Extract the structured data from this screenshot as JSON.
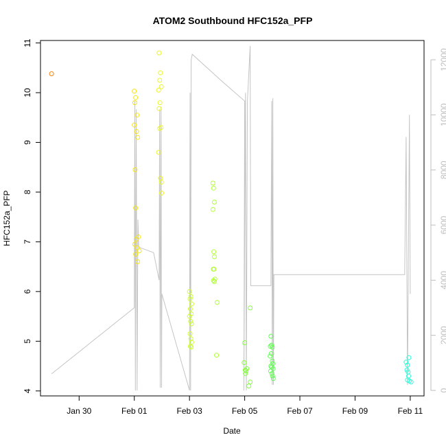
{
  "chart_data": {
    "type": "scatter",
    "title": "ATOM2 Southbound HFC152a_PFP",
    "xlabel": "Date",
    "ylabel": "HFC152a_PFP",
    "x_ticks": [
      "Jan 30",
      "Feb 01",
      "Feb 03",
      "Feb 05",
      "Feb 07",
      "Feb 09",
      "Feb 11"
    ],
    "x_tick_days": [
      30,
      32,
      34,
      36,
      38,
      40,
      42
    ],
    "xlim_days": [
      28.6,
      42.5
    ],
    "y_ticks": [
      4,
      5,
      6,
      7,
      8,
      9,
      10,
      11
    ],
    "ylim": [
      3.9,
      11.05
    ],
    "y2_ticks": [
      0,
      2000,
      4000,
      6000,
      8000,
      10000,
      12000
    ],
    "y2lim": [
      -200,
      12700
    ],
    "colors": {
      "axis": "#000000",
      "secondary_axis": "#bdbdbd",
      "altitude_line": "#c4c4c4",
      "gradient": [
        "#ff7f00",
        "#ffd200",
        "#e6ff33",
        "#99ff33",
        "#44ff66",
        "#22ffaa",
        "#22ffdd"
      ]
    },
    "series": [
      {
        "role": "points",
        "points": [
          {
            "x": 29.0,
            "y": 10.38
          },
          {
            "x": 32.0,
            "y": 10.03
          },
          {
            "x": 32.05,
            "y": 9.9
          },
          {
            "x": 32.02,
            "y": 9.8
          },
          {
            "x": 32.1,
            "y": 9.55
          },
          {
            "x": 32.0,
            "y": 9.35
          },
          {
            "x": 32.08,
            "y": 9.22
          },
          {
            "x": 32.12,
            "y": 9.1
          },
          {
            "x": 32.03,
            "y": 8.45
          },
          {
            "x": 32.05,
            "y": 7.68
          },
          {
            "x": 32.15,
            "y": 7.1
          },
          {
            "x": 32.07,
            "y": 7.05
          },
          {
            "x": 32.02,
            "y": 6.95
          },
          {
            "x": 32.1,
            "y": 6.88
          },
          {
            "x": 32.18,
            "y": 6.82
          },
          {
            "x": 32.05,
            "y": 6.75
          },
          {
            "x": 32.12,
            "y": 6.6
          },
          {
            "x": 32.9,
            "y": 10.8
          },
          {
            "x": 32.95,
            "y": 10.4
          },
          {
            "x": 32.92,
            "y": 10.25
          },
          {
            "x": 32.98,
            "y": 10.12
          },
          {
            "x": 32.88,
            "y": 10.05
          },
          {
            "x": 32.93,
            "y": 9.8
          },
          {
            "x": 32.9,
            "y": 9.68
          },
          {
            "x": 32.97,
            "y": 9.3
          },
          {
            "x": 32.92,
            "y": 9.28
          },
          {
            "x": 32.88,
            "y": 8.8
          },
          {
            "x": 32.95,
            "y": 8.28
          },
          {
            "x": 32.98,
            "y": 8.2
          },
          {
            "x": 32.99,
            "y": 7.98
          },
          {
            "x": 34.0,
            "y": 6.0
          },
          {
            "x": 34.05,
            "y": 5.9
          },
          {
            "x": 34.02,
            "y": 5.85
          },
          {
            "x": 34.08,
            "y": 5.75
          },
          {
            "x": 34.03,
            "y": 5.65
          },
          {
            "x": 34.06,
            "y": 5.55
          },
          {
            "x": 34.0,
            "y": 5.5
          },
          {
            "x": 34.04,
            "y": 5.4
          },
          {
            "x": 34.07,
            "y": 5.35
          },
          {
            "x": 34.02,
            "y": 5.15
          },
          {
            "x": 34.05,
            "y": 5.05
          },
          {
            "x": 34.08,
            "y": 4.98
          },
          {
            "x": 34.03,
            "y": 4.9
          },
          {
            "x": 34.06,
            "y": 4.88
          },
          {
            "x": 34.85,
            "y": 8.18
          },
          {
            "x": 34.87,
            "y": 8.08
          },
          {
            "x": 34.9,
            "y": 7.8
          },
          {
            "x": 34.85,
            "y": 7.65
          },
          {
            "x": 34.88,
            "y": 6.8
          },
          {
            "x": 34.9,
            "y": 6.7
          },
          {
            "x": 34.86,
            "y": 6.45
          },
          {
            "x": 34.89,
            "y": 6.45
          },
          {
            "x": 34.92,
            "y": 6.25
          },
          {
            "x": 34.87,
            "y": 6.22
          },
          {
            "x": 34.9,
            "y": 6.2
          },
          {
            "x": 35.0,
            "y": 5.78
          },
          {
            "x": 34.98,
            "y": 4.72
          },
          {
            "x": 36.0,
            "y": 4.97
          },
          {
            "x": 35.98,
            "y": 4.57
          },
          {
            "x": 36.02,
            "y": 4.42
          },
          {
            "x": 36.05,
            "y": 4.4
          },
          {
            "x": 36.03,
            "y": 4.35
          },
          {
            "x": 36.08,
            "y": 4.45
          },
          {
            "x": 36.2,
            "y": 5.67
          },
          {
            "x": 36.2,
            "y": 4.18
          },
          {
            "x": 36.15,
            "y": 4.1
          },
          {
            "x": 36.95,
            "y": 5.1
          },
          {
            "x": 36.97,
            "y": 4.92
          },
          {
            "x": 36.93,
            "y": 4.9
          },
          {
            "x": 37.0,
            "y": 4.88
          },
          {
            "x": 36.96,
            "y": 4.75
          },
          {
            "x": 36.92,
            "y": 4.7
          },
          {
            "x": 37.0,
            "y": 4.6
          },
          {
            "x": 37.02,
            "y": 4.55
          },
          {
            "x": 36.95,
            "y": 4.5
          },
          {
            "x": 36.98,
            "y": 4.48
          },
          {
            "x": 37.03,
            "y": 4.45
          },
          {
            "x": 36.94,
            "y": 4.4
          },
          {
            "x": 36.99,
            "y": 4.35
          },
          {
            "x": 37.01,
            "y": 4.3
          },
          {
            "x": 37.04,
            "y": 4.25
          },
          {
            "x": 41.85,
            "y": 4.58
          },
          {
            "x": 41.95,
            "y": 4.67
          },
          {
            "x": 41.9,
            "y": 4.52
          },
          {
            "x": 41.88,
            "y": 4.42
          },
          {
            "x": 41.92,
            "y": 4.38
          },
          {
            "x": 41.94,
            "y": 4.3
          },
          {
            "x": 41.9,
            "y": 4.22
          },
          {
            "x": 41.97,
            "y": 4.2
          },
          {
            "x": 42.03,
            "y": 4.18
          }
        ]
      },
      {
        "role": "line",
        "axis": "right",
        "points": [
          {
            "x": 29.0,
            "y": 600
          },
          {
            "x": 32.0,
            "y": 3000
          },
          {
            "x": 32.02,
            "y": 10500
          },
          {
            "x": 32.04,
            "y": 0
          },
          {
            "x": 32.07,
            "y": 10200
          },
          {
            "x": 32.1,
            "y": 0
          },
          {
            "x": 32.13,
            "y": 6200
          },
          {
            "x": 32.16,
            "y": 5200
          },
          {
            "x": 32.7,
            "y": 5000
          },
          {
            "x": 32.9,
            "y": 4000
          },
          {
            "x": 32.92,
            "y": 10200
          },
          {
            "x": 32.94,
            "y": 100
          },
          {
            "x": 32.97,
            "y": 10300
          },
          {
            "x": 32.99,
            "y": 100
          },
          {
            "x": 33.0,
            "y": 3500
          },
          {
            "x": 34.0,
            "y": 0
          },
          {
            "x": 34.02,
            "y": 10800
          },
          {
            "x": 34.04,
            "y": 0
          },
          {
            "x": 34.06,
            "y": 12000
          },
          {
            "x": 34.1,
            "y": 12200
          },
          {
            "x": 35.2,
            "y": 11200
          },
          {
            "x": 36.0,
            "y": 10500
          },
          {
            "x": 35.97,
            "y": 0
          },
          {
            "x": 36.03,
            "y": 10800
          },
          {
            "x": 36.06,
            "y": 0
          },
          {
            "x": 36.1,
            "y": 10500
          },
          {
            "x": 36.2,
            "y": 12500
          },
          {
            "x": 36.22,
            "y": 3800
          },
          {
            "x": 36.95,
            "y": 3800
          },
          {
            "x": 36.98,
            "y": 10500
          },
          {
            "x": 37.0,
            "y": 200
          },
          {
            "x": 37.02,
            "y": 10600
          },
          {
            "x": 37.04,
            "y": 200
          },
          {
            "x": 37.06,
            "y": 4200
          },
          {
            "x": 41.8,
            "y": 4200
          },
          {
            "x": 41.85,
            "y": 9200
          },
          {
            "x": 41.9,
            "y": 200
          },
          {
            "x": 41.97,
            "y": 10000
          },
          {
            "x": 42.0,
            "y": 3500
          }
        ]
      }
    ]
  }
}
